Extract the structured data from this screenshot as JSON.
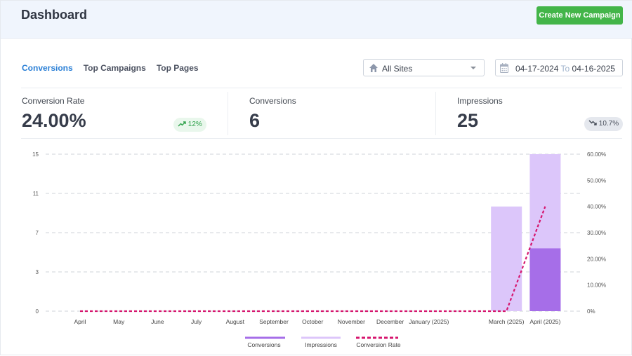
{
  "header": {
    "title": "Dashboard",
    "create_button": "Create New Campaign"
  },
  "tabs": [
    {
      "label": "Conversions",
      "active": true
    },
    {
      "label": "Top Campaigns",
      "active": false
    },
    {
      "label": "Top Pages",
      "active": false
    }
  ],
  "site_select": {
    "value": "All Sites",
    "icon": "home-icon"
  },
  "date_range": {
    "from": "04-17-2024",
    "to_label": "To",
    "to": "04-16-2025",
    "icon": "calendar-icon"
  },
  "stats": [
    {
      "label": "Conversion Rate",
      "value": "24.00%",
      "change": "12%",
      "trend": "up"
    },
    {
      "label": "Conversions",
      "value": "6"
    },
    {
      "label": "Impressions",
      "value": "25",
      "change": "10.7%",
      "trend": "down"
    }
  ],
  "colors": {
    "accent": "#2a7fd6",
    "button": "#43b549",
    "conversions": "#a66ee8",
    "impressions": "#dcc6fa",
    "rate": "#d6166e"
  },
  "chart_data": {
    "type": "bar",
    "categories": [
      "April",
      "May",
      "June",
      "July",
      "August",
      "September",
      "October",
      "November",
      "December",
      "January (2025)",
      "",
      "March (2025)",
      "April (2025)"
    ],
    "series": [
      {
        "name": "Conversions",
        "type": "bar",
        "axis": "left",
        "values": [
          0,
          0,
          0,
          0,
          0,
          0,
          0,
          0,
          0,
          0,
          0,
          0,
          6
        ]
      },
      {
        "name": "Impressions",
        "type": "bar",
        "axis": "left",
        "values": [
          0,
          0,
          0,
          0,
          0,
          0,
          0,
          0,
          0,
          0,
          0,
          10,
          15
        ]
      },
      {
        "name": "Conversion Rate",
        "type": "line",
        "axis": "right",
        "style": "dashed",
        "values": [
          0,
          0,
          0,
          0,
          0,
          0,
          0,
          0,
          0,
          0,
          0,
          0,
          40
        ]
      }
    ],
    "y_left": {
      "ylim": [
        0,
        15
      ],
      "ticks": [
        "0",
        "3",
        "7",
        "11",
        "15"
      ]
    },
    "y_right": {
      "ylim": [
        0,
        60
      ],
      "ticks": [
        "0%",
        "10.00%",
        "20.00%",
        "30.00%",
        "40.00%",
        "50.00%",
        "60.00%"
      ]
    },
    "grid": true,
    "legend": "bottom"
  }
}
